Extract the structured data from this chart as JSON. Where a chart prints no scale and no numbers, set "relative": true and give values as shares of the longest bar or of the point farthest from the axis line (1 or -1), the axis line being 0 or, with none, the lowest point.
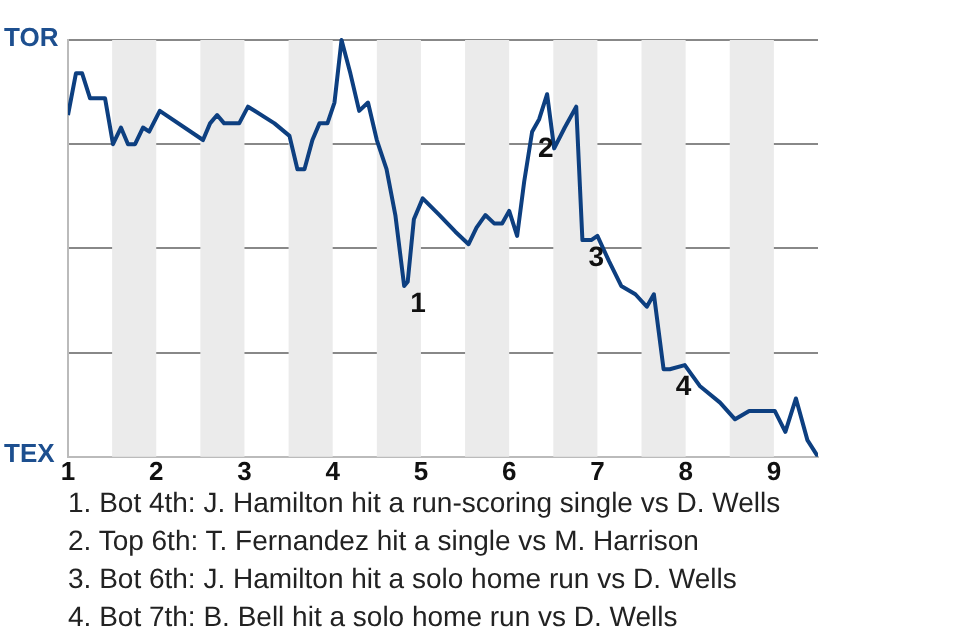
{
  "chart_data": {
    "type": "line",
    "relative": true,
    "x": [
      1,
      1.09,
      1.16,
      1.25,
      1.42,
      1.51,
      1.6,
      1.68,
      1.76,
      1.85,
      1.92,
      2.04,
      2.53,
      2.61,
      2.69,
      2.77,
      2.94,
      3.04,
      3.34,
      3.51,
      3.6,
      3.68,
      3.77,
      3.85,
      3.94,
      4.02,
      4.1,
      4.2,
      4.3,
      4.4,
      4.5,
      4.61,
      4.71,
      4.81,
      4.85,
      4.92,
      5.02,
      5.21,
      5.39,
      5.54,
      5.63,
      5.73,
      5.83,
      5.92,
      6,
      6.09,
      6.17,
      6.26,
      6.34,
      6.43,
      6.51,
      6.63,
      6.76,
      6.83,
      6.93,
      7,
      7.13,
      7.27,
      7.43,
      7.56,
      7.64,
      7.75,
      7.82,
      7.99,
      8.16,
      8.39,
      8.56,
      8.72,
      9.01,
      9.13,
      9.25,
      9.38,
      9.5
    ],
    "series": [
      {
        "color": "#0d3f80",
        "values": [
          0.82,
          0.92,
          0.92,
          0.86,
          0.86,
          0.75,
          0.79,
          0.75,
          0.75,
          0.79,
          0.78,
          0.83,
          0.76,
          0.8,
          0.82,
          0.8,
          0.8,
          0.84,
          0.8,
          0.77,
          0.69,
          0.69,
          0.76,
          0.8,
          0.8,
          0.85,
          1,
          0.92,
          0.83,
          0.85,
          0.76,
          0.69,
          0.58,
          0.41,
          0.42,
          0.57,
          0.62,
          0.58,
          0.54,
          0.51,
          0.55,
          0.58,
          0.56,
          0.56,
          0.59,
          0.53,
          0.66,
          0.78,
          0.81,
          0.87,
          0.74,
          0.79,
          0.84,
          0.52,
          0.52,
          0.53,
          0.47,
          0.41,
          0.39,
          0.36,
          0.39,
          0.21,
          0.21,
          0.22,
          0.17,
          0.13,
          0.09,
          0.11,
          0.11,
          0.06,
          0.14,
          0.04,
          0
        ]
      }
    ],
    "xlim": [
      1,
      9.5
    ],
    "xticks": [
      1,
      2,
      3,
      4,
      5,
      6,
      7,
      8,
      9
    ],
    "grid": "y",
    "marker": "none",
    "bands": [
      {
        "axis": "x",
        "from": 1.5,
        "to": 2,
        "color": "#ebebeb"
      },
      {
        "axis": "x",
        "from": 2.5,
        "to": 3,
        "color": "#ebebeb"
      },
      {
        "axis": "x",
        "from": 3.5,
        "to": 4,
        "color": "#ebebeb"
      },
      {
        "axis": "x",
        "from": 4.5,
        "to": 5,
        "color": "#ebebeb"
      },
      {
        "axis": "x",
        "from": 5.5,
        "to": 6,
        "color": "#ebebeb"
      },
      {
        "axis": "x",
        "from": 6.5,
        "to": 7,
        "color": "#ebebeb"
      },
      {
        "axis": "x",
        "from": 7.5,
        "to": 8,
        "color": "#ebebeb"
      },
      {
        "axis": "x",
        "from": 8.5,
        "to": 9,
        "color": "#ebebeb"
      }
    ],
    "annotations": [
      "TOR",
      "TEX",
      {
        "text": "1",
        "x": 4.81,
        "y": 0.41
      },
      {
        "text": "2",
        "x": 6.26,
        "y": 0.78
      },
      {
        "text": "3",
        "x": 6.83,
        "y": 0.52
      },
      {
        "text": "4",
        "x": 7.82,
        "y": 0.21
      },
      "1. Bot 4th: J. Hamilton hit a run-scoring single vs D. Wells",
      "2. Top 6th: T. Fernandez hit a single vs M. Harrison",
      "3. Bot 6th: J. Hamilton hit a solo home run vs D. Wells",
      "4. Bot 7th: B. Bell hit a solo home run vs D. Wells"
    ]
  }
}
